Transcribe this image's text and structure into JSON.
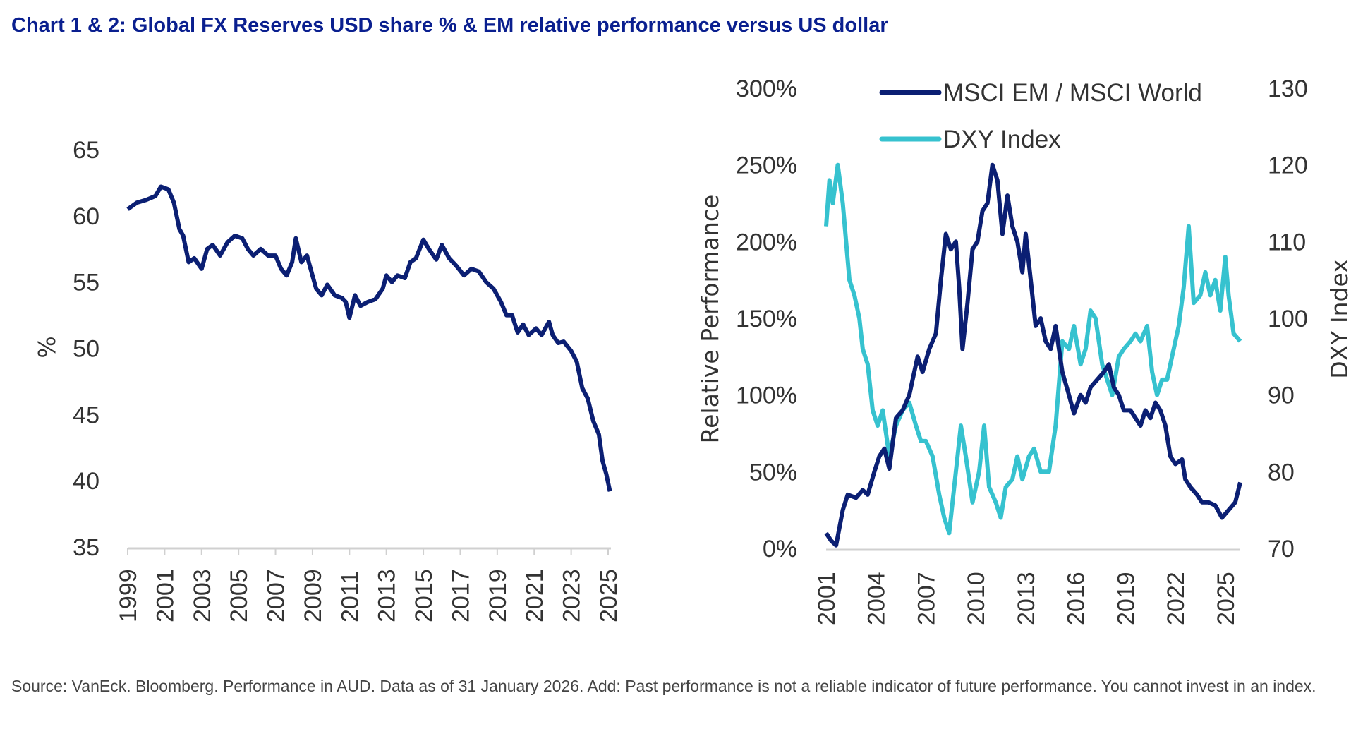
{
  "title": "Chart 1 & 2: Global FX Reserves USD share % & EM relative performance versus US dollar",
  "source": "Source: VanEck. Bloomberg. Performance in AUD. Data as of 31 January 2026. Add: Past performance is not a reliable indicator of future performance. You cannot invest in an index.",
  "colors": {
    "navy": "#0b1f73",
    "cyan": "#36c2cf",
    "title": "#0a1f8f"
  },
  "chart_data": [
    {
      "type": "line",
      "ylabel": "%",
      "xlim": [
        1999,
        2025
      ],
      "ylim": [
        35,
        65
      ],
      "xticks": [
        "1999",
        "2001",
        "2003",
        "2005",
        "2007",
        "2009",
        "2011",
        "2013",
        "2015",
        "2017",
        "2019",
        "2021",
        "2023",
        "2025"
      ],
      "yticks": [
        "35",
        "40",
        "45",
        "50",
        "55",
        "60",
        "65"
      ],
      "grid": false,
      "series": [
        {
          "color": "#0b1f73",
          "x": [
            1999.0,
            1999.5,
            2000.0,
            2000.5,
            2000.8,
            2001.2,
            2001.5,
            2001.8,
            2002.0,
            2002.3,
            2002.6,
            2003.0,
            2003.3,
            2003.6,
            2004.0,
            2004.4,
            2004.8,
            2005.2,
            2005.5,
            2005.8,
            2006.2,
            2006.6,
            2007.0,
            2007.3,
            2007.6,
            2007.9,
            2008.1,
            2008.4,
            2008.7,
            2009.0,
            2009.2,
            2009.5,
            2009.8,
            2010.2,
            2010.6,
            2010.8,
            2011.0,
            2011.3,
            2011.6,
            2012.0,
            2012.4,
            2012.8,
            2013.0,
            2013.3,
            2013.6,
            2014.0,
            2014.3,
            2014.6,
            2015.0,
            2015.3,
            2015.7,
            2016.0,
            2016.4,
            2016.8,
            2017.2,
            2017.6,
            2018.0,
            2018.4,
            2018.8,
            2019.2,
            2019.5,
            2019.8,
            2020.1,
            2020.4,
            2020.7,
            2021.1,
            2021.4,
            2021.8,
            2022.0,
            2022.3,
            2022.6,
            2023.0,
            2023.3,
            2023.6,
            2023.9,
            2024.2,
            2024.5,
            2024.7,
            2024.9,
            2025.1
          ],
          "y": [
            60.5,
            61,
            61.2,
            61.5,
            62.2,
            62,
            61,
            59,
            58.5,
            56.5,
            56.8,
            56,
            57.5,
            57.8,
            57,
            58,
            58.5,
            58.3,
            57.5,
            57,
            57.5,
            57,
            57,
            56,
            55.5,
            56.5,
            58.3,
            56.5,
            57,
            55.5,
            54.5,
            54,
            54.8,
            54,
            53.8,
            53.5,
            52.3,
            54,
            53.2,
            53.5,
            53.7,
            54.5,
            55.5,
            55,
            55.5,
            55.3,
            56.5,
            56.8,
            58.2,
            57.5,
            56.7,
            57.8,
            56.8,
            56.2,
            55.5,
            56,
            55.8,
            55,
            54.5,
            53.5,
            52.5,
            52.5,
            51.2,
            51.8,
            51,
            51.5,
            51,
            52,
            51,
            50.4,
            50.5,
            49.8,
            49,
            47,
            46.2,
            44.5,
            43.5,
            41.5,
            40.5,
            39.2
          ]
        }
      ]
    },
    {
      "type": "line",
      "ylabel": "Relative Performance",
      "y2label": "DXY Index",
      "xlim": [
        2001,
        2025.9
      ],
      "ylim": [
        0,
        300
      ],
      "y2lim": [
        70,
        130
      ],
      "xticks": [
        "2001",
        "2004",
        "2007",
        "2010",
        "2013",
        "2016",
        "2019",
        "2022",
        "2025"
      ],
      "yticks": [
        "0%",
        "50%",
        "100%",
        "150%",
        "200%",
        "250%",
        "300%"
      ],
      "y2ticks": [
        "70",
        "80",
        "90",
        "100",
        "110",
        "120",
        "130"
      ],
      "legend": "top",
      "grid": false,
      "series": [
        {
          "name": "MSCI EM / MSCI World",
          "axis": "left",
          "color": "#0b1f73",
          "x": [
            2001.0,
            2001.3,
            2001.6,
            2002.0,
            2002.3,
            2002.8,
            2003.2,
            2003.5,
            2003.9,
            2004.2,
            2004.5,
            2004.8,
            2005.2,
            2005.6,
            2006.0,
            2006.2,
            2006.5,
            2006.8,
            2007.2,
            2007.6,
            2007.9,
            2008.2,
            2008.5,
            2008.8,
            2009.0,
            2009.2,
            2009.5,
            2009.8,
            2010.1,
            2010.4,
            2010.7,
            2011.0,
            2011.3,
            2011.6,
            2011.9,
            2012.2,
            2012.5,
            2012.8,
            2013.0,
            2013.3,
            2013.6,
            2013.9,
            2014.2,
            2014.5,
            2014.8,
            2015.2,
            2015.6,
            2015.9,
            2016.3,
            2016.6,
            2016.9,
            2017.3,
            2017.7,
            2018.0,
            2018.3,
            2018.6,
            2018.9,
            2019.3,
            2019.6,
            2019.9,
            2020.2,
            2020.5,
            2020.8,
            2021.1,
            2021.4,
            2021.7,
            2022.0,
            2022.4,
            2022.6,
            2022.9,
            2023.3,
            2023.6,
            2024.0,
            2024.4,
            2024.8,
            2025.2,
            2025.6,
            2025.9
          ],
          "y": [
            10,
            5,
            2,
            25,
            35,
            33,
            38,
            35,
            50,
            60,
            65,
            52,
            85,
            90,
            100,
            110,
            125,
            115,
            130,
            140,
            175,
            205,
            195,
            200,
            170,
            130,
            160,
            195,
            200,
            220,
            225,
            250,
            240,
            205,
            230,
            210,
            200,
            180,
            205,
            175,
            145,
            150,
            135,
            130,
            145,
            115,
            100,
            88,
            100,
            95,
            105,
            110,
            115,
            120,
            105,
            100,
            90,
            90,
            85,
            80,
            90,
            85,
            95,
            90,
            80,
            60,
            55,
            58,
            45,
            40,
            35,
            30,
            30,
            28,
            20,
            25,
            30,
            43
          ]
        },
        {
          "name": "DXY Index",
          "axis": "right",
          "color": "#36c2cf",
          "x": [
            2001.0,
            2001.2,
            2001.4,
            2001.7,
            2002.0,
            2002.4,
            2002.7,
            2003.0,
            2003.2,
            2003.5,
            2003.8,
            2004.1,
            2004.4,
            2004.8,
            2005.2,
            2005.6,
            2006.0,
            2006.4,
            2006.7,
            2007.0,
            2007.4,
            2007.8,
            2008.1,
            2008.4,
            2008.8,
            2009.1,
            2009.4,
            2009.8,
            2010.2,
            2010.5,
            2010.8,
            2011.2,
            2011.5,
            2011.8,
            2012.2,
            2012.5,
            2012.8,
            2013.2,
            2013.5,
            2013.9,
            2014.4,
            2014.8,
            2015.2,
            2015.6,
            2015.9,
            2016.3,
            2016.6,
            2016.9,
            2017.2,
            2017.6,
            2017.9,
            2018.2,
            2018.6,
            2018.9,
            2019.3,
            2019.6,
            2019.9,
            2020.3,
            2020.6,
            2020.9,
            2021.2,
            2021.5,
            2021.8,
            2022.2,
            2022.5,
            2022.8,
            2023.1,
            2023.5,
            2023.8,
            2024.1,
            2024.4,
            2024.7,
            2025.0,
            2025.2,
            2025.5,
            2025.9
          ],
          "y": [
            112,
            118,
            115,
            120,
            115,
            105,
            103,
            100,
            96,
            94,
            88,
            86,
            88,
            82,
            86,
            88,
            89,
            86,
            84,
            84,
            82,
            77,
            74,
            72,
            80,
            86,
            82,
            76,
            80,
            86,
            78,
            76,
            74,
            78,
            79,
            82,
            79,
            82,
            83,
            80,
            80,
            86,
            97,
            96,
            99,
            94,
            96,
            101,
            100,
            94,
            92,
            90,
            95,
            96,
            97,
            98,
            97,
            99,
            93,
            90,
            92,
            92,
            95,
            99,
            104,
            112,
            102,
            103,
            106,
            103,
            105,
            101,
            108,
            103,
            98,
            97
          ]
        }
      ]
    }
  ]
}
